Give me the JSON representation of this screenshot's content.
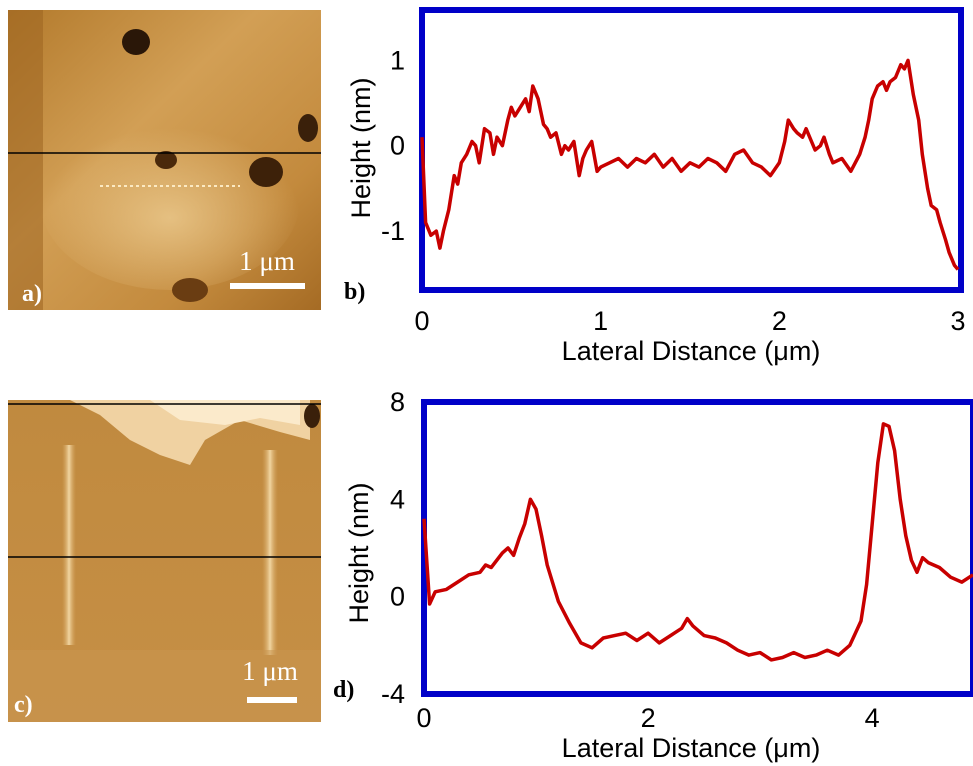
{
  "panels": {
    "a": {
      "label": "a)",
      "scale_text": "1 μm"
    },
    "b": {
      "label": "b)"
    },
    "c": {
      "label": "c)",
      "scale_text": "1 μm"
    },
    "d": {
      "label": "d)"
    }
  },
  "colors": {
    "frame": "#0000c8",
    "line": "#c80000"
  },
  "chart_data": [
    {
      "type": "line",
      "panel": "b",
      "xlabel": "Lateral Distance (μm)",
      "ylabel": "Height (nm)",
      "xlim": [
        0,
        3
      ],
      "ylim": [
        -1.55,
        1.45
      ],
      "xticks": [
        0,
        1,
        2,
        3
      ],
      "yticks": [
        -1,
        0,
        1
      ],
      "series": [
        {
          "x": [
            0.0,
            0.02,
            0.05,
            0.08,
            0.1,
            0.12,
            0.15,
            0.18,
            0.2,
            0.22,
            0.25,
            0.28,
            0.3,
            0.32,
            0.35,
            0.38,
            0.4,
            0.42,
            0.45,
            0.48,
            0.5,
            0.52,
            0.55,
            0.58,
            0.6,
            0.62,
            0.65,
            0.68,
            0.7,
            0.72,
            0.75,
            0.78,
            0.8,
            0.82,
            0.85,
            0.88,
            0.9,
            0.92,
            0.95,
            0.98,
            1.0,
            1.05,
            1.1,
            1.15,
            1.2,
            1.25,
            1.3,
            1.35,
            1.4,
            1.45,
            1.5,
            1.55,
            1.6,
            1.65,
            1.7,
            1.75,
            1.8,
            1.85,
            1.9,
            1.95,
            2.0,
            2.03,
            2.05,
            2.08,
            2.1,
            2.13,
            2.15,
            2.18,
            2.2,
            2.23,
            2.25,
            2.28,
            2.3,
            2.35,
            2.4,
            2.45,
            2.48,
            2.5,
            2.52,
            2.55,
            2.58,
            2.6,
            2.62,
            2.65,
            2.68,
            2.7,
            2.72,
            2.75,
            2.78,
            2.8,
            2.83,
            2.85,
            2.88,
            2.9,
            2.93,
            2.95,
            2.98,
            3.0
          ],
          "y": [
            0.1,
            -0.9,
            -1.05,
            -1.0,
            -1.2,
            -1.0,
            -0.75,
            -0.35,
            -0.45,
            -0.2,
            -0.1,
            0.05,
            0.0,
            -0.2,
            0.2,
            0.15,
            -0.1,
            0.1,
            0.0,
            0.3,
            0.45,
            0.35,
            0.45,
            0.55,
            0.4,
            0.7,
            0.55,
            0.25,
            0.2,
            0.1,
            0.15,
            -0.1,
            0.0,
            -0.05,
            0.05,
            -0.35,
            -0.15,
            -0.05,
            0.05,
            -0.3,
            -0.25,
            -0.2,
            -0.15,
            -0.25,
            -0.15,
            -0.2,
            -0.1,
            -0.25,
            -0.15,
            -0.3,
            -0.2,
            -0.25,
            -0.15,
            -0.2,
            -0.3,
            -0.1,
            -0.05,
            -0.2,
            -0.25,
            -0.35,
            -0.2,
            0.05,
            0.3,
            0.2,
            0.15,
            0.1,
            0.2,
            0.05,
            -0.05,
            0.0,
            0.1,
            -0.1,
            -0.2,
            -0.15,
            -0.3,
            -0.1,
            0.1,
            0.3,
            0.55,
            0.7,
            0.75,
            0.65,
            0.75,
            0.8,
            0.95,
            0.9,
            1.0,
            0.6,
            0.3,
            -0.1,
            -0.5,
            -0.7,
            -0.75,
            -0.9,
            -1.1,
            -1.25,
            -1.4,
            -1.45
          ]
        }
      ]
    },
    {
      "type": "line",
      "panel": "d",
      "xlabel": "Lateral Distance (μm)",
      "ylabel": "Height (nm)",
      "xlim": [
        0,
        4.9
      ],
      "ylim": [
        -4,
        8
      ],
      "xticks": [
        0,
        2,
        4
      ],
      "yticks": [
        -4,
        0,
        4,
        8
      ],
      "series": [
        {
          "x": [
            0.0,
            0.05,
            0.1,
            0.2,
            0.3,
            0.4,
            0.5,
            0.55,
            0.6,
            0.7,
            0.75,
            0.8,
            0.85,
            0.9,
            0.95,
            1.0,
            1.05,
            1.1,
            1.2,
            1.3,
            1.4,
            1.5,
            1.6,
            1.7,
            1.8,
            1.9,
            2.0,
            2.1,
            2.2,
            2.3,
            2.35,
            2.4,
            2.5,
            2.6,
            2.7,
            2.8,
            2.9,
            3.0,
            3.1,
            3.2,
            3.3,
            3.4,
            3.5,
            3.6,
            3.7,
            3.8,
            3.85,
            3.9,
            3.95,
            4.0,
            4.05,
            4.1,
            4.15,
            4.2,
            4.25,
            4.3,
            4.35,
            4.4,
            4.45,
            4.5,
            4.6,
            4.7,
            4.8,
            4.9
          ],
          "y": [
            3.2,
            -0.3,
            0.2,
            0.3,
            0.6,
            0.9,
            1.0,
            1.3,
            1.2,
            1.8,
            2.0,
            1.7,
            2.4,
            3.0,
            4.0,
            3.6,
            2.5,
            1.3,
            -0.2,
            -1.1,
            -1.9,
            -2.1,
            -1.7,
            -1.6,
            -1.5,
            -1.8,
            -1.5,
            -1.9,
            -1.6,
            -1.3,
            -0.9,
            -1.2,
            -1.6,
            -1.7,
            -1.9,
            -2.2,
            -2.4,
            -2.3,
            -2.6,
            -2.5,
            -2.3,
            -2.5,
            -2.4,
            -2.2,
            -2.4,
            -2.0,
            -1.5,
            -1.0,
            0.5,
            3.0,
            5.5,
            7.1,
            7.0,
            6.0,
            4.0,
            2.5,
            1.5,
            1.0,
            1.6,
            1.4,
            1.2,
            0.8,
            0.6,
            0.9
          ]
        }
      ]
    }
  ]
}
